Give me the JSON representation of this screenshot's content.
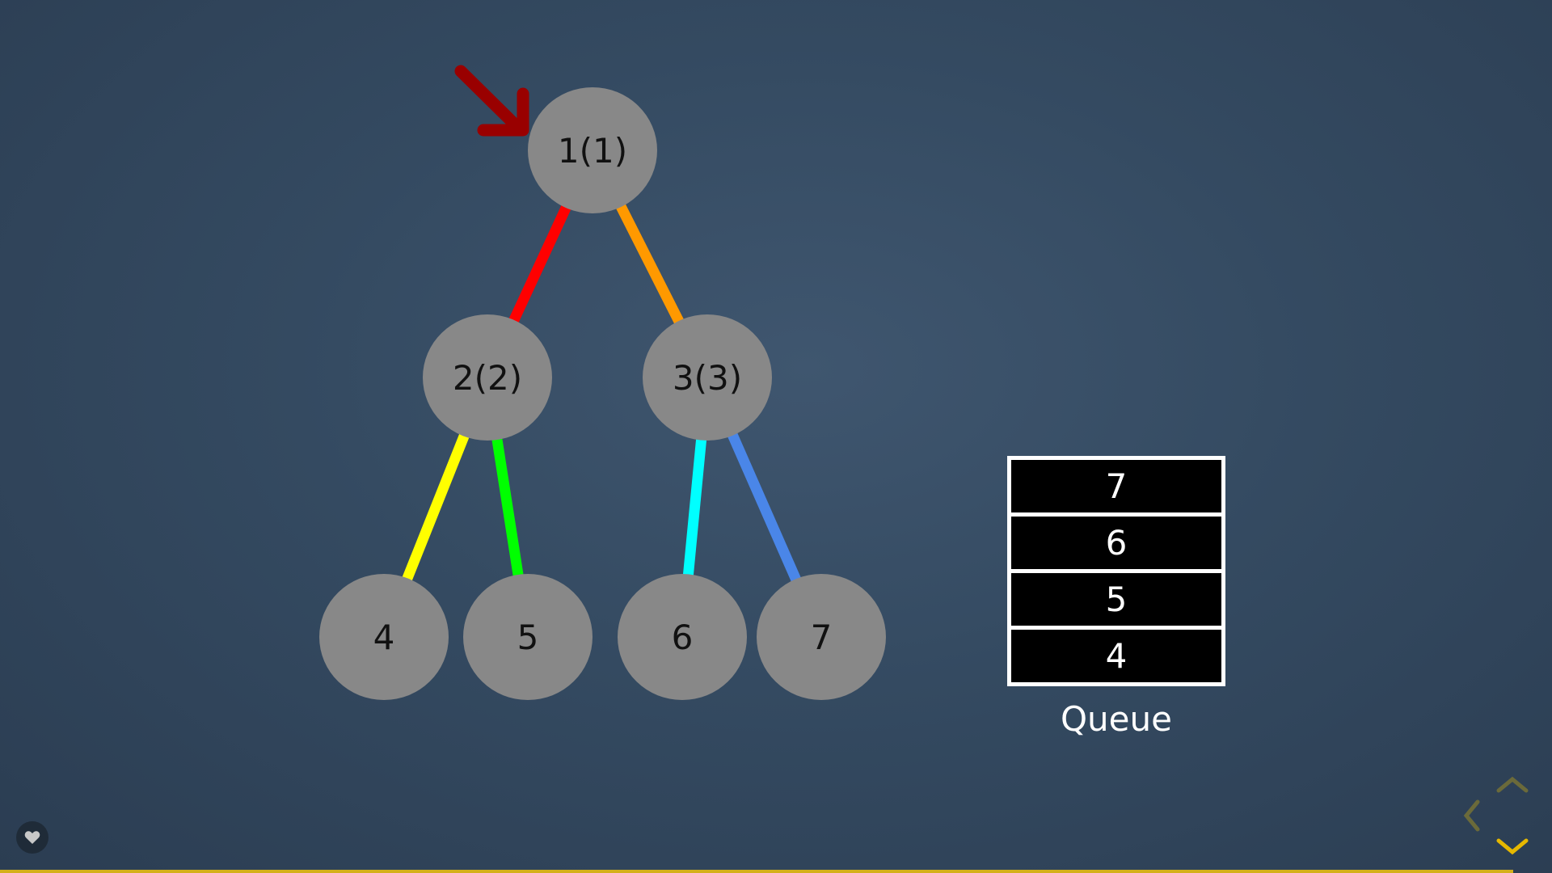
{
  "tree": {
    "nodes": [
      {
        "id": "n1",
        "label": "1(1)"
      },
      {
        "id": "n2",
        "label": "2(2)"
      },
      {
        "id": "n3",
        "label": "3(3)"
      },
      {
        "id": "n4",
        "label": "4"
      },
      {
        "id": "n5",
        "label": "5"
      },
      {
        "id": "n6",
        "label": "6"
      },
      {
        "id": "n7",
        "label": "7"
      }
    ],
    "edges": [
      {
        "from": "n1",
        "to": "n2",
        "color": "#ff0000"
      },
      {
        "from": "n1",
        "to": "n3",
        "color": "#ff9900"
      },
      {
        "from": "n2",
        "to": "n4",
        "color": "#ffff00"
      },
      {
        "from": "n2",
        "to": "n5",
        "color": "#00ff00"
      },
      {
        "from": "n3",
        "to": "n6",
        "color": "#00ffff"
      },
      {
        "from": "n3",
        "to": "n7",
        "color": "#4a86e8"
      }
    ],
    "node_color": "#888888",
    "pointer_color": "#990000",
    "pointer_target": "n1"
  },
  "queue": {
    "items": [
      "7",
      "6",
      "5",
      "4"
    ],
    "label": "Queue"
  },
  "navigation": {
    "icons": [
      "chevron-up-icon",
      "chevron-left-icon",
      "chevron-down-icon"
    ],
    "accent_color": "#e6b800",
    "dim_color": "#6b6a3a"
  },
  "progress": {
    "fraction": 0.975,
    "color": "#d4b01a"
  }
}
